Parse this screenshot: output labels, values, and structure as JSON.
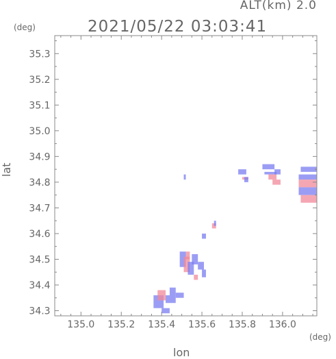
{
  "header": {
    "alt_label": "ALT(km) 2.0",
    "timestamp": "2021/05/22 03:03:41"
  },
  "chart_data": {
    "type": "heatmap",
    "title": "2021/05/22 03:03:41",
    "xlabel": "lon",
    "ylabel": "lat",
    "x_unit": "(deg)",
    "y_unit": "(deg)",
    "xlim": [
      134.87,
      136.17
    ],
    "ylim": [
      34.28,
      35.37
    ],
    "x_ticks": [
      135.0,
      135.2,
      135.4,
      135.6,
      135.8,
      136.0
    ],
    "x_tick_labels": [
      "135.0",
      "135.2",
      "135.4",
      "135.6",
      "135.8",
      "136.0"
    ],
    "y_ticks": [
      34.3,
      34.4,
      34.5,
      34.6,
      34.7,
      34.8,
      34.9,
      35.0,
      35.1,
      35.2,
      35.3
    ],
    "y_tick_labels": [
      "34.3",
      "34.4",
      "34.5",
      "34.6",
      "34.7",
      "34.8",
      "34.9",
      "35.0",
      "35.1",
      "35.2",
      "35.3"
    ],
    "grid": false,
    "colors": {
      "approaching": "#7a7cf0",
      "receding": "#f08a9a",
      "axis": "#888888"
    },
    "cells": [
      {
        "lon": 135.36,
        "lat": 34.31,
        "lon_w": 0.05,
        "lat_h": 0.05,
        "sign": "approaching"
      },
      {
        "lon": 135.38,
        "lat": 34.34,
        "lon_w": 0.04,
        "lat_h": 0.04,
        "sign": "receding"
      },
      {
        "lon": 135.42,
        "lat": 34.33,
        "lon_w": 0.05,
        "lat_h": 0.03,
        "sign": "approaching"
      },
      {
        "lon": 135.44,
        "lat": 34.36,
        "lon_w": 0.03,
        "lat_h": 0.03,
        "sign": "approaching"
      },
      {
        "lon": 135.47,
        "lat": 34.35,
        "lon_w": 0.04,
        "lat_h": 0.02,
        "sign": "approaching"
      },
      {
        "lon": 135.4,
        "lat": 34.29,
        "lon_w": 0.04,
        "lat_h": 0.02,
        "sign": "approaching"
      },
      {
        "lon": 135.49,
        "lat": 34.47,
        "lon_w": 0.03,
        "lat_h": 0.06,
        "sign": "approaching"
      },
      {
        "lon": 135.51,
        "lat": 34.45,
        "lon_w": 0.03,
        "lat_h": 0.06,
        "sign": "receding"
      },
      {
        "lon": 135.52,
        "lat": 34.5,
        "lon_w": 0.02,
        "lat_h": 0.03,
        "sign": "receding"
      },
      {
        "lon": 135.53,
        "lat": 34.44,
        "lon_w": 0.03,
        "lat_h": 0.05,
        "sign": "approaching"
      },
      {
        "lon": 135.55,
        "lat": 34.48,
        "lon_w": 0.03,
        "lat_h": 0.04,
        "sign": "approaching"
      },
      {
        "lon": 135.58,
        "lat": 34.46,
        "lon_w": 0.03,
        "lat_h": 0.03,
        "sign": "approaching"
      },
      {
        "lon": 135.6,
        "lat": 34.43,
        "lon_w": 0.02,
        "lat_h": 0.03,
        "sign": "approaching"
      },
      {
        "lon": 135.56,
        "lat": 34.42,
        "lon_w": 0.02,
        "lat_h": 0.02,
        "sign": "receding"
      },
      {
        "lon": 135.6,
        "lat": 34.58,
        "lon_w": 0.02,
        "lat_h": 0.02,
        "sign": "approaching"
      },
      {
        "lon": 135.65,
        "lat": 34.62,
        "lon_w": 0.02,
        "lat_h": 0.02,
        "sign": "receding"
      },
      {
        "lon": 135.66,
        "lat": 34.63,
        "lon_w": 0.01,
        "lat_h": 0.02,
        "sign": "approaching"
      },
      {
        "lon": 135.51,
        "lat": 34.81,
        "lon_w": 0.01,
        "lat_h": 0.02,
        "sign": "approaching"
      },
      {
        "lon": 135.78,
        "lat": 34.83,
        "lon_w": 0.04,
        "lat_h": 0.02,
        "sign": "approaching"
      },
      {
        "lon": 135.8,
        "lat": 34.81,
        "lon_w": 0.03,
        "lat_h": 0.01,
        "sign": "receding"
      },
      {
        "lon": 135.81,
        "lat": 34.8,
        "lon_w": 0.02,
        "lat_h": 0.02,
        "sign": "approaching"
      },
      {
        "lon": 135.9,
        "lat": 34.85,
        "lon_w": 0.06,
        "lat_h": 0.02,
        "sign": "approaching"
      },
      {
        "lon": 135.91,
        "lat": 34.83,
        "lon_w": 0.06,
        "lat_h": 0.01,
        "sign": "approaching"
      },
      {
        "lon": 135.93,
        "lat": 34.81,
        "lon_w": 0.04,
        "lat_h": 0.02,
        "sign": "receding"
      },
      {
        "lon": 135.95,
        "lat": 34.79,
        "lon_w": 0.04,
        "lat_h": 0.02,
        "sign": "receding"
      },
      {
        "lon": 135.96,
        "lat": 34.83,
        "lon_w": 0.03,
        "lat_h": 0.02,
        "sign": "approaching"
      },
      {
        "lon": 136.09,
        "lat": 34.84,
        "lon_w": 0.08,
        "lat_h": 0.02,
        "sign": "approaching"
      },
      {
        "lon": 136.08,
        "lat": 34.81,
        "lon_w": 0.09,
        "lat_h": 0.02,
        "sign": "approaching"
      },
      {
        "lon": 136.08,
        "lat": 34.78,
        "lon_w": 0.09,
        "lat_h": 0.03,
        "sign": "receding"
      },
      {
        "lon": 136.08,
        "lat": 34.75,
        "lon_w": 0.09,
        "lat_h": 0.03,
        "sign": "approaching"
      },
      {
        "lon": 136.09,
        "lat": 34.72,
        "lon_w": 0.08,
        "lat_h": 0.03,
        "sign": "receding"
      }
    ]
  }
}
